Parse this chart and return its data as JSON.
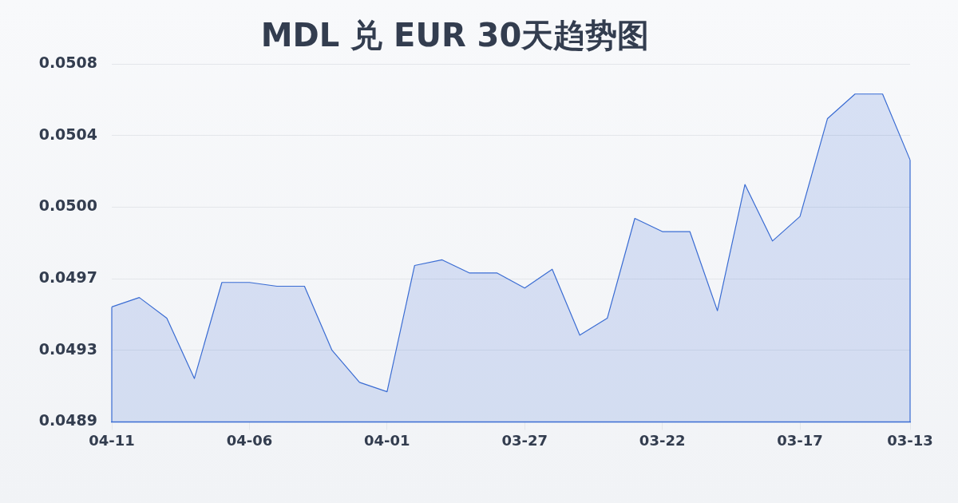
{
  "chart_data": {
    "type": "area",
    "title": "MDL 兑 EUR 30天趋势图",
    "categories": [
      "04-11",
      null,
      null,
      null,
      null,
      "04-06",
      null,
      null,
      null,
      null,
      "04-01",
      null,
      null,
      null,
      null,
      "03-27",
      null,
      null,
      null,
      null,
      "03-22",
      null,
      null,
      null,
      null,
      "03-17",
      null,
      null,
      null,
      "03-13"
    ],
    "values": [
      0.04951,
      0.04956,
      0.04945,
      0.04913,
      0.04964,
      0.04964,
      0.04962,
      0.04962,
      0.04928,
      0.04911,
      0.04906,
      0.04973,
      0.04976,
      0.04969,
      0.04969,
      0.04961,
      0.04971,
      0.04936,
      0.04945,
      0.04998,
      0.04991,
      0.04991,
      0.04949,
      0.05016,
      0.04986,
      0.04999,
      0.05051,
      0.05064,
      0.05064,
      0.05029
    ],
    "color": "#3a6cd3",
    "ylim": [
      0.0489,
      0.0508
    ],
    "yticks": [
      {
        "value": 0.0489,
        "label": "0.0489"
      },
      {
        "value": 0.04928,
        "label": "0.0493"
      },
      {
        "value": 0.04966,
        "label": "0.0497"
      },
      {
        "value": 0.05004,
        "label": "0.0500"
      },
      {
        "value": 0.05042,
        "label": "0.0504"
      },
      {
        "value": 0.0508,
        "label": "0.0508"
      }
    ],
    "grid": "y"
  }
}
